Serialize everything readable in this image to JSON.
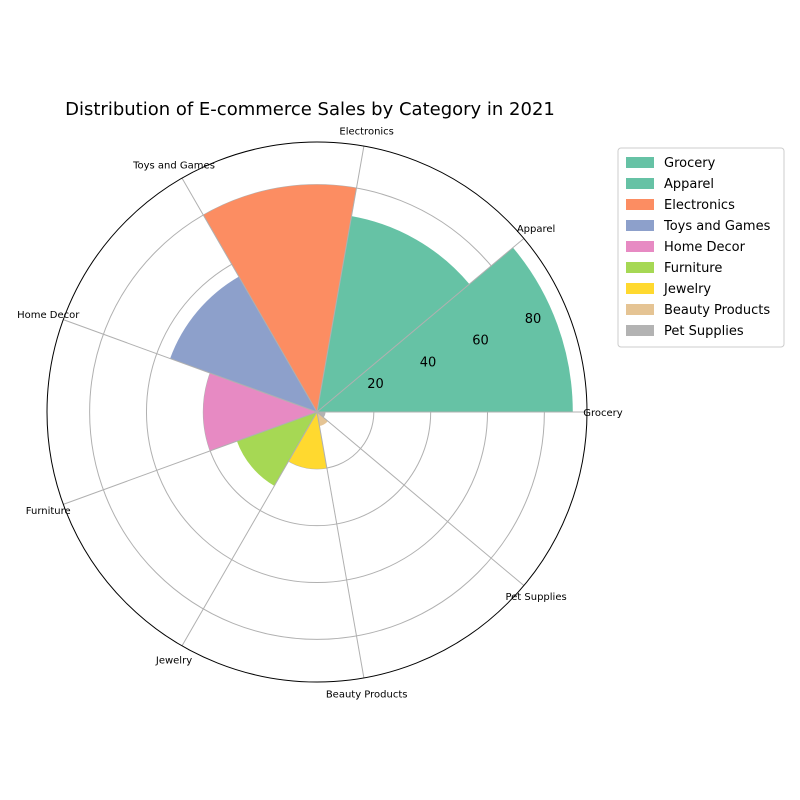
{
  "chart_data": {
    "type": "polar-bar",
    "title": "Distribution of E-commerce Sales by Category in 2021",
    "categories": [
      "Grocery",
      "Apparel",
      "Electronics",
      "Toys and Games",
      "Home Decor",
      "Furniture",
      "Jewelry",
      "Beauty Products",
      "Pet Supplies"
    ],
    "values": [
      90,
      70,
      80,
      55,
      40,
      30,
      20,
      5,
      3
    ],
    "colors": [
      "#66c2a5",
      "#66c2a5",
      "#fc8d62",
      "#8da0cb",
      "#e78ac3",
      "#a6d854",
      "#ffd92f",
      "#e5c494",
      "#b3b3b3"
    ],
    "r_ticks": [
      20,
      40,
      60,
      80
    ],
    "r_max": 95,
    "grid": true,
    "legend": {
      "placement": "upper-right-outside",
      "entries": [
        "Grocery",
        "Apparel",
        "Electronics",
        "Toys and Games",
        "Home Decor",
        "Furniture",
        "Jewelry",
        "Beauty Products",
        "Pet Supplies"
      ]
    }
  }
}
